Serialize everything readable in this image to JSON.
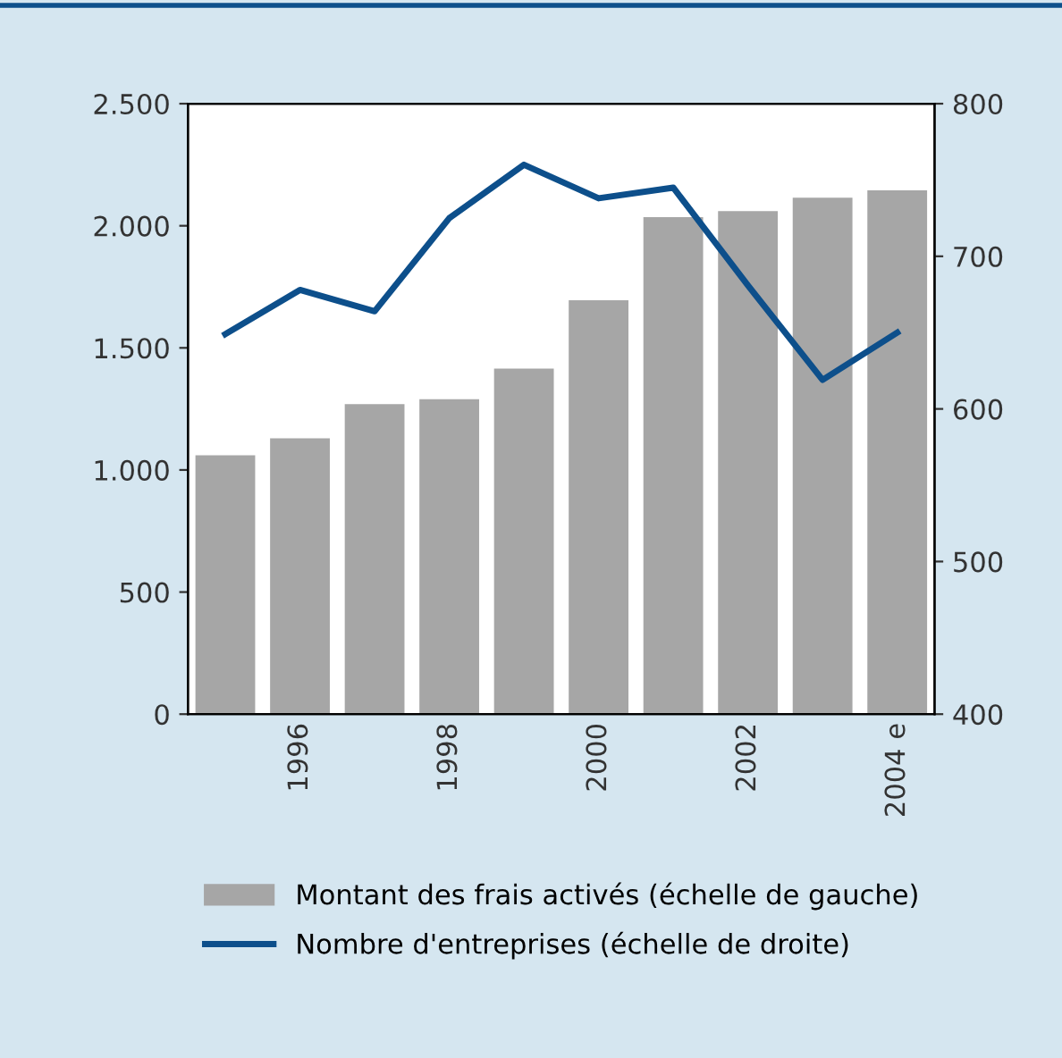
{
  "chart_data": {
    "type": "bar",
    "categories": [
      null,
      "1996",
      null,
      "1998",
      null,
      "2000",
      null,
      "2002",
      null,
      "2004 e"
    ],
    "series": [
      {
        "name": "Montant des frais activés (échelle de gauche)",
        "color": "#a6a6a6",
        "values": [
          1060,
          1130,
          1270,
          1290,
          1415,
          1695,
          2035,
          2060,
          2115,
          2145
        ]
      },
      {
        "name": "Nombre d'entreprises (échelle de droite)",
        "type": "line",
        "axis": "y2",
        "color": "#0d4f8b",
        "values": [
          649,
          678,
          664,
          725,
          760,
          738,
          745,
          681,
          619,
          650
        ]
      }
    ],
    "ylim": [
      0,
      2500
    ],
    "yticks": [
      {
        "value": 0,
        "label": "0"
      },
      {
        "value": 500,
        "label": "500"
      },
      {
        "value": 1000,
        "label": "1.000"
      },
      {
        "value": 1500,
        "label": "1.500"
      },
      {
        "value": 2000,
        "label": "2.000"
      },
      {
        "value": 2500,
        "label": "2.500"
      }
    ],
    "y2lim": [
      400,
      800
    ],
    "y2ticks": [
      400,
      500,
      600,
      700,
      800
    ],
    "grid": false,
    "legend": "bottom",
    "marker": "none",
    "line_style": "solid"
  }
}
